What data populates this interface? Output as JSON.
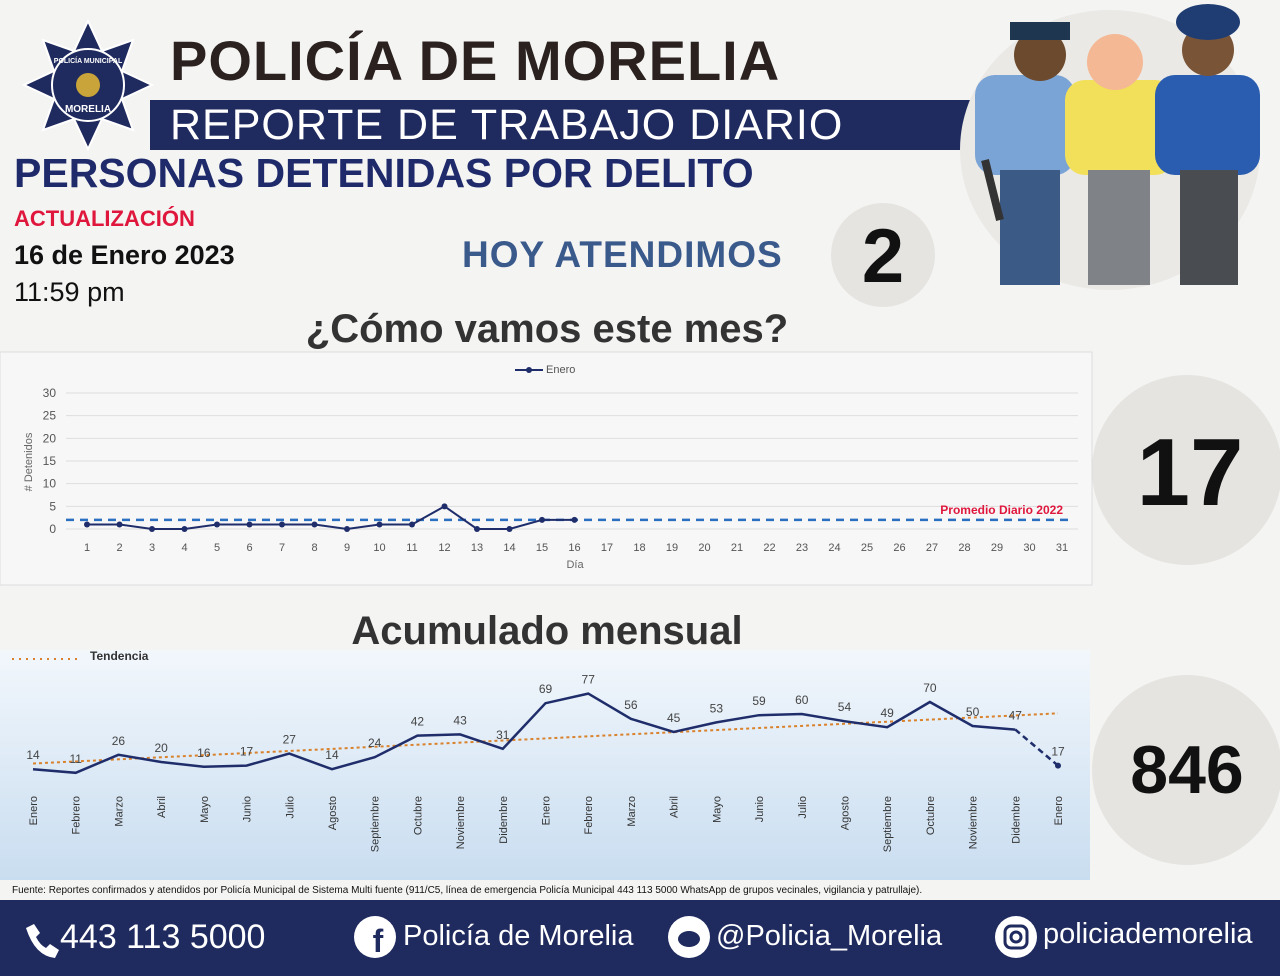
{
  "header": {
    "title": "POLICÍA DE MORELIA",
    "subtitle": "REPORTE DE TRABAJO DIARIO",
    "badge_top": "POLICÍA MUNICIPAL",
    "badge_bottom": "MORELIA"
  },
  "section_title": "PERSONAS DETENIDAS POR DELITO",
  "update": {
    "label": "ACTUALIZACIÓN",
    "date": "16 de Enero 2023",
    "time": "11:59 pm"
  },
  "today": {
    "label": "HOY ATENDIMOS",
    "value": 2
  },
  "month_total": 17,
  "cumulative_total": 846,
  "footer": {
    "source": "Fuente: Reportes confirmados y atendidos por Policía Municipal de Sistema Multi fuente (911/C5, línea de emergencia Policía Municipal 443 113 5000 WhatsApp de grupos vecinales, vigilancia y patrullaje).",
    "phone": "443 113 5000",
    "facebook": "Policía de Morelia",
    "twitter": "@Policia_Morelia",
    "instagram": "policiademorelia"
  },
  "chart_data": [
    {
      "type": "line",
      "title": "¿Cómo vamos este mes?",
      "x_label": "Día",
      "y_label": "# Detenidos",
      "categories": [
        1,
        2,
        3,
        4,
        5,
        6,
        7,
        8,
        9,
        10,
        11,
        12,
        13,
        14,
        15,
        16,
        17,
        18,
        19,
        20,
        21,
        22,
        23,
        24,
        25,
        26,
        27,
        28,
        29,
        30,
        31
      ],
      "series": [
        {
          "name": "Enero",
          "color": "#1f2d6b",
          "values": [
            1,
            1,
            0,
            0,
            1,
            1,
            1,
            1,
            0,
            1,
            1,
            5,
            0,
            0,
            2,
            2,
            null,
            null,
            null,
            null,
            null,
            null,
            null,
            null,
            null,
            null,
            null,
            null,
            null,
            null,
            null
          ]
        }
      ],
      "reference_line": {
        "label": "Promedio Diario 2022",
        "value": 2,
        "color": "#2a6fc0"
      },
      "ylim": [
        0,
        30
      ],
      "yticks": [
        0,
        5,
        10,
        15,
        20,
        25,
        30
      ],
      "grid": true
    },
    {
      "type": "line",
      "title": "Acumulado mensual",
      "categories": [
        "Enero",
        "Febrero",
        "Marzo",
        "Abril",
        "Mayo",
        "Junio",
        "Julio",
        "Agosto",
        "Septiembre",
        "Octubre",
        "Noviembre",
        "Didembre",
        "Enero",
        "Febrero",
        "Marzo",
        "Abril",
        "Mayo",
        "Junio",
        "Julio",
        "Agosto",
        "Septiembre",
        "Octubre",
        "Noviembre",
        "Didembre",
        "Enero"
      ],
      "series": [
        {
          "name": "Acumulado",
          "color": "#1f2d6b",
          "values": [
            14,
            11,
            26,
            20,
            16,
            17,
            27,
            14,
            24,
            42,
            43,
            31,
            69,
            77,
            56,
            45,
            53,
            59,
            60,
            54,
            49,
            70,
            50,
            47,
            17
          ]
        }
      ],
      "last_segment_dashed": true,
      "trend": {
        "label": "Tendencia",
        "color": "#d9822b"
      },
      "ylim": [
        0,
        105
      ]
    }
  ]
}
